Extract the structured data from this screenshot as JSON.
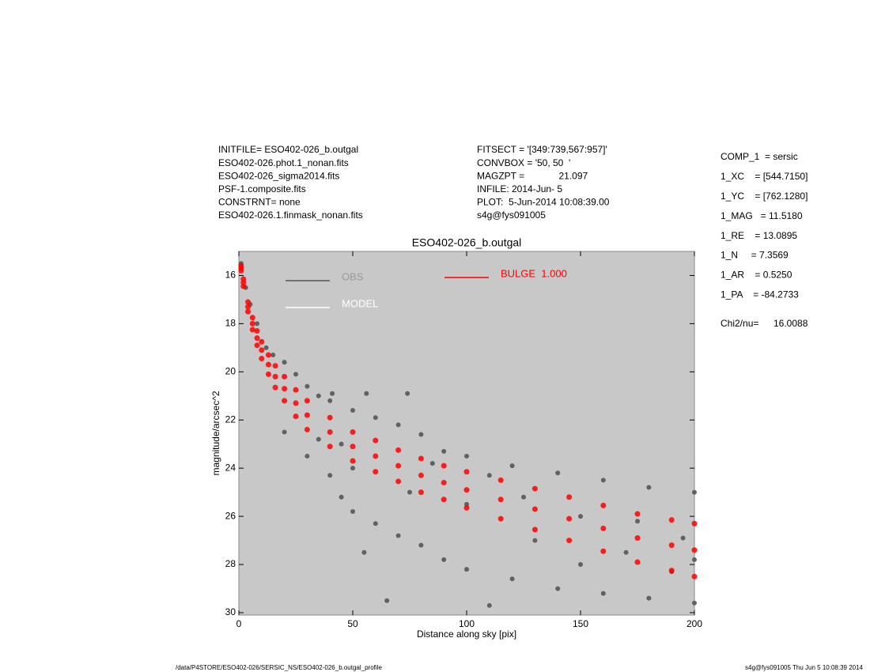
{
  "chart_data": {
    "type": "scatter",
    "title": "ESO402-026_b.outgal",
    "xlabel": "Distance along sky [pix]",
    "ylabel": "magnitude/arcsec^2",
    "xlim": [
      0,
      200
    ],
    "ylim": [
      15,
      30.1
    ],
    "invert_y": true,
    "xticks": [
      0,
      50,
      100,
      150,
      200
    ],
    "yticks": [
      16,
      18,
      20,
      22,
      24,
      26,
      28,
      30
    ],
    "background": "#c8c8c8",
    "header_left": [
      "INITFILE= ESO402-026_b.outgal",
      "ESO402-026.phot.1_nonan.fits",
      "ESO402-026_sigma2014.fits",
      "PSF-1.composite.fits",
      "CONSTRNT= none",
      "ESO402-026.1.finmask_nonan.fits"
    ],
    "header_middle": [
      "FITSECT = '[349:739,567:957]'",
      "CONVBOX = '50, 50  '",
      "MAGZPT =             21.097",
      "INFILE: 2014-Jun- 5",
      "PLOT:  5-Jun-2014 10:08:39.00",
      "s4g@fys091005"
    ],
    "params": [
      "COMP_1  = sersic",
      "1_XC    = [544.7150]",
      "1_YC    = [762.1280]",
      "1_MAG   = 11.5180",
      "1_RE    = 13.0895",
      "1_N     = 7.3569",
      "1_AR    = 0.5250",
      "1_PA    = -84.2733"
    ],
    "chi2_label": "Chi2/nu=",
    "chi2_value": 16.0088,
    "footer_left": "/data/P4STORE/ESO402-026/SERSIC_NS/ESO402-026_b.outgal_profile",
    "footer_right": "s4g@fys091005  Thu Jun  5 10:08:39 2014",
    "series": [
      {
        "name": "OBS",
        "color": "#555555",
        "x": [
          1,
          3,
          5,
          8,
          12,
          15,
          20,
          25,
          30,
          35,
          40,
          41,
          50,
          56,
          60,
          70,
          74,
          80,
          90,
          100,
          120,
          140,
          160,
          180,
          200,
          20,
          30,
          40,
          45,
          50,
          60,
          70,
          80,
          90,
          100,
          120,
          140,
          160,
          180,
          200,
          65,
          110,
          150,
          55,
          130,
          170,
          190,
          100,
          150,
          50,
          75,
          125,
          175,
          35,
          45,
          85,
          110,
          195,
          200
        ],
        "y": [
          15.5,
          16.5,
          17.2,
          18.0,
          19.0,
          19.3,
          19.6,
          20.1,
          20.6,
          21.0,
          21.2,
          20.9,
          21.6,
          20.9,
          21.9,
          22.2,
          20.9,
          22.6,
          23.3,
          23.5,
          23.9,
          24.2,
          24.5,
          24.8,
          25.0,
          22.5,
          23.5,
          24.3,
          25.2,
          25.8,
          26.3,
          26.8,
          27.2,
          27.8,
          28.2,
          28.6,
          29.0,
          29.2,
          29.4,
          29.6,
          29.5,
          29.7,
          28.0,
          27.5,
          27.0,
          27.5,
          28.3,
          25.5,
          26.0,
          24.0,
          25.0,
          25.2,
          26.2,
          22.8,
          23.0,
          23.8,
          24.3,
          26.9,
          27.8
        ]
      },
      {
        "name": "MODEL",
        "color": "#ffffff",
        "x": [],
        "y": []
      },
      {
        "name": "BULGE  1.000",
        "color": "#ff0000",
        "x": [
          1,
          1,
          1,
          2,
          2,
          2,
          4,
          4,
          4,
          6,
          6,
          6,
          8,
          8,
          8,
          10,
          10,
          10,
          13,
          13,
          13,
          16,
          16,
          16,
          20,
          20,
          20,
          25,
          25,
          25,
          30,
          30,
          30,
          40,
          40,
          40,
          50,
          50,
          50,
          60,
          60,
          60,
          70,
          70,
          70,
          80,
          80,
          80,
          90,
          90,
          90,
          100,
          100,
          100,
          115,
          115,
          115,
          130,
          130,
          130,
          145,
          145,
          145,
          160,
          160,
          160,
          175,
          175,
          175,
          190,
          190,
          190,
          200,
          200,
          200
        ],
        "y": [
          15.6,
          15.7,
          15.8,
          16.15,
          16.3,
          16.45,
          17.1,
          17.3,
          17.5,
          17.75,
          18.0,
          18.25,
          18.3,
          18.6,
          18.9,
          18.75,
          19.1,
          19.45,
          19.3,
          19.7,
          20.1,
          19.75,
          20.2,
          20.65,
          20.2,
          20.7,
          21.2,
          20.75,
          21.3,
          21.85,
          21.2,
          21.8,
          22.4,
          21.9,
          22.5,
          23.1,
          22.5,
          23.1,
          23.7,
          22.85,
          23.5,
          24.15,
          23.25,
          23.9,
          24.55,
          23.6,
          24.3,
          25.0,
          23.9,
          24.6,
          25.3,
          24.15,
          24.9,
          25.65,
          24.5,
          25.3,
          26.1,
          24.85,
          25.7,
          26.55,
          25.2,
          26.1,
          27.0,
          25.55,
          26.5,
          27.45,
          25.9,
          26.9,
          27.9,
          26.15,
          27.2,
          28.25,
          26.3,
          27.4,
          28.5
        ]
      }
    ]
  }
}
